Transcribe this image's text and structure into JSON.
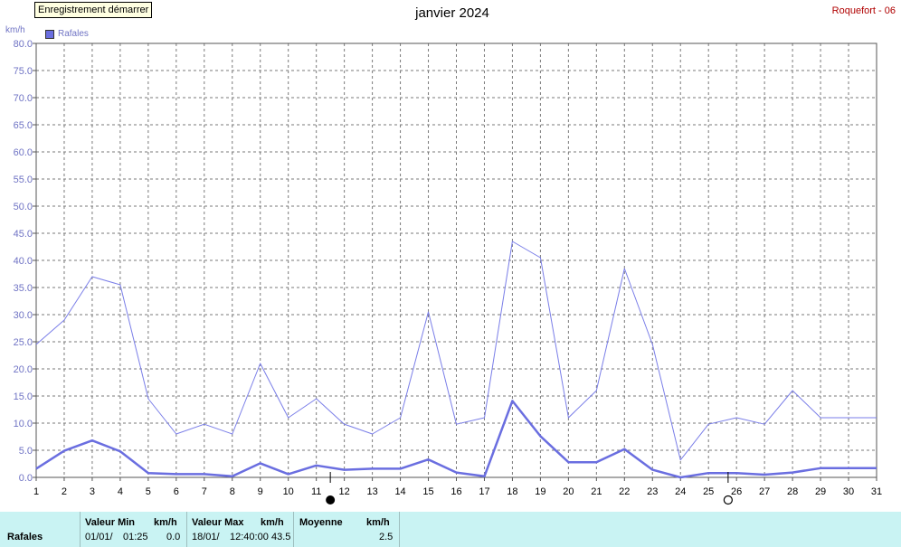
{
  "tooltip": "Enregistrement démarrer",
  "station": "Roquefort - 06",
  "chart_data": {
    "type": "line",
    "title": "janvier 2024",
    "ylabel": "km/h",
    "ylim": [
      0,
      80
    ],
    "yticks": [
      "0.0",
      "5.0",
      "10.0",
      "15.0",
      "20.0",
      "25.0",
      "30.0",
      "35.0",
      "40.0",
      "45.0",
      "50.0",
      "55.0",
      "60.0",
      "65.0",
      "70.0",
      "75.0",
      "80.0"
    ],
    "x": [
      "1",
      "2",
      "3",
      "4",
      "5",
      "6",
      "7",
      "8",
      "9",
      "10",
      "11",
      "12",
      "13",
      "14",
      "15",
      "16",
      "17",
      "18",
      "19",
      "20",
      "21",
      "22",
      "23",
      "24",
      "25",
      "26",
      "27",
      "28",
      "29",
      "30",
      "31"
    ],
    "legend": "top-left",
    "grid": true,
    "series": [
      {
        "name": "Rafales",
        "kind": "max",
        "color": "#7a7ee8",
        "values": [
          24.5,
          29,
          37,
          35.5,
          14.5,
          8,
          9.8,
          8,
          21,
          11,
          14.5,
          9.8,
          8,
          11,
          30.5,
          9.8,
          11,
          43.5,
          40.5,
          11,
          16,
          38.5,
          24.5,
          3.2,
          9.8,
          11,
          9.8,
          16,
          11,
          11,
          11
        ]
      },
      {
        "name": "",
        "kind": "mean",
        "color": "#6a6ee0",
        "values": [
          1.6,
          4.9,
          6.8,
          4.8,
          0.8,
          0.6,
          0.6,
          0.2,
          2.6,
          0.6,
          2.2,
          1.4,
          1.6,
          1.6,
          3.3,
          0.9,
          0.2,
          14.1,
          7.6,
          2.8,
          2.8,
          5.2,
          1.4,
          0.0,
          0.8,
          0.8,
          0.5,
          0.9,
          1.7,
          1.7,
          1.7
        ]
      }
    ],
    "markers": [
      {
        "symbol": "filled-circle",
        "x": 11.5
      },
      {
        "symbol": "open-circle",
        "x": 25.7
      }
    ]
  },
  "stats": {
    "row_label": "Rafales",
    "min_header": "Valeur Min",
    "min_unit": "km/h",
    "min_date": "01/01/",
    "min_time": "01:25",
    "min_value": "0.0",
    "max_header": "Valeur Max",
    "max_unit": "km/h",
    "max_date": "18/01/",
    "max_time": "12:40:00",
    "max_value": "43.5",
    "avg_header": "Moyenne",
    "avg_unit": "km/h",
    "avg_value": "2.5"
  }
}
